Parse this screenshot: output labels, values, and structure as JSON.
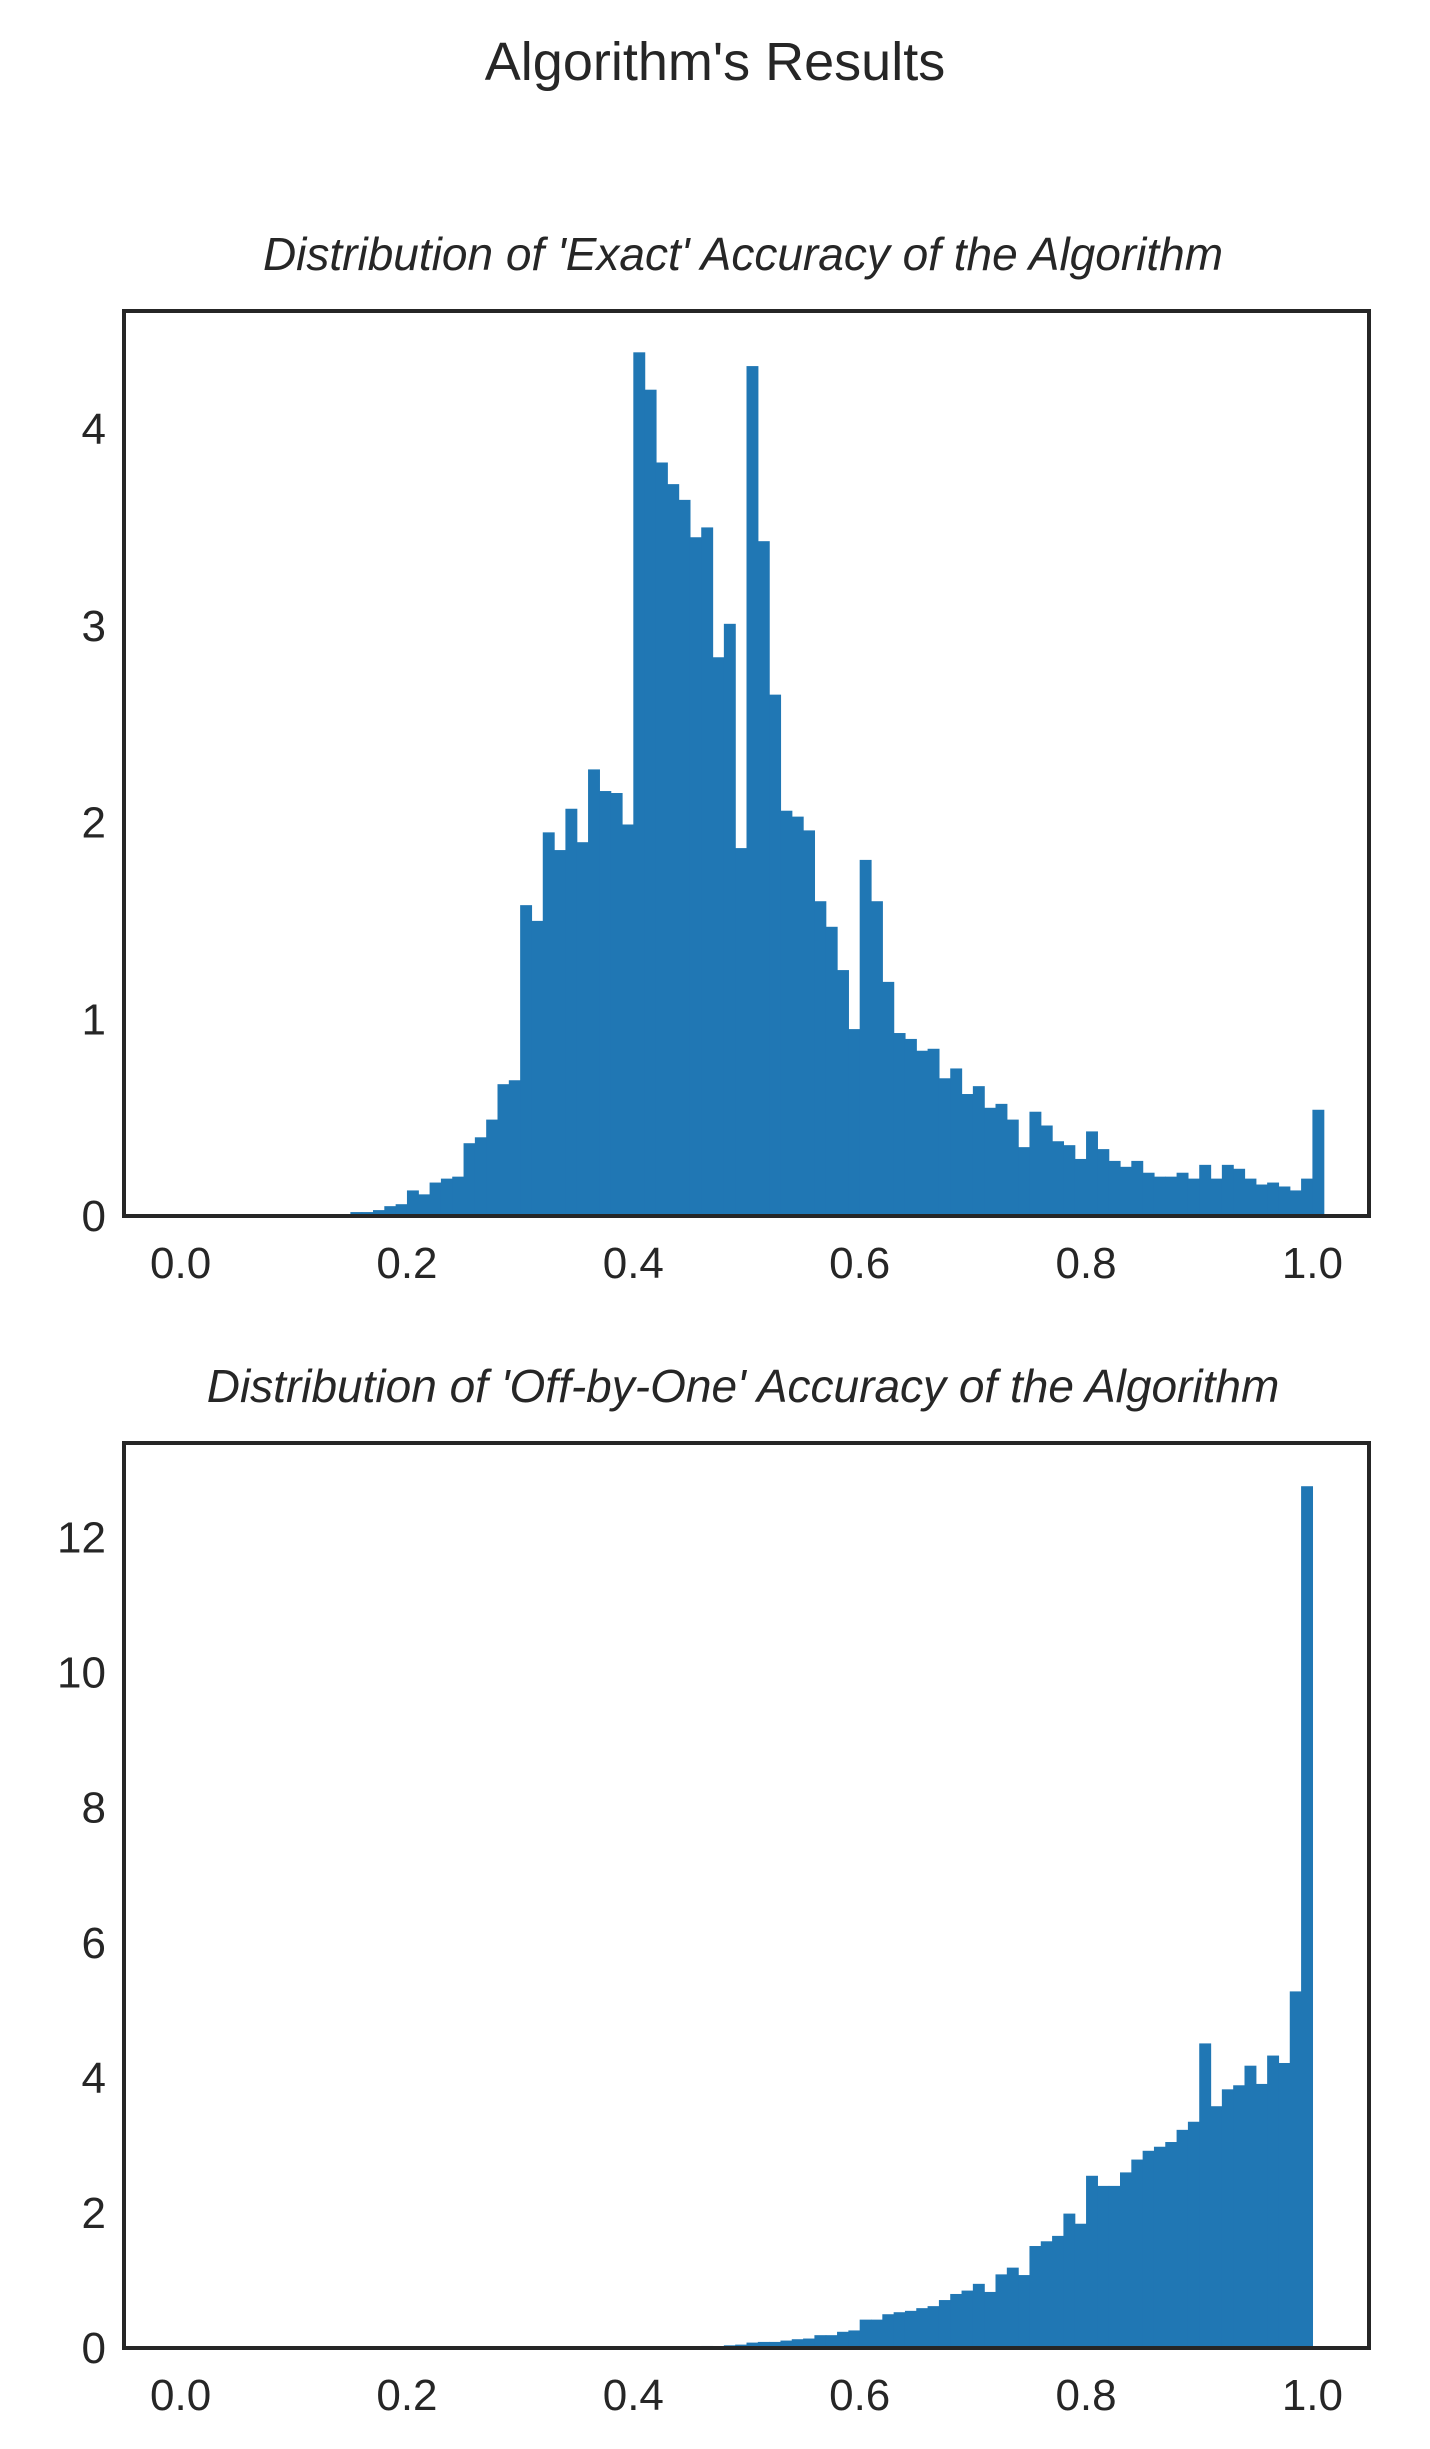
{
  "figure": {
    "suptitle": "Algorithm's Results"
  },
  "chart_data": [
    {
      "type": "bar",
      "subtype": "histogram",
      "title": "Distribution of 'Exact' Accuracy of the Algorithm",
      "xlabel": "",
      "ylabel": "",
      "xlim": [
        -0.05,
        1.05
      ],
      "ylim": [
        0,
        4.6
      ],
      "xticks": [
        0.0,
        0.2,
        0.4,
        0.6,
        0.8,
        1.0
      ],
      "xtick_labels": [
        "0.0",
        "0.2",
        "0.4",
        "0.6",
        "0.8",
        "1.0"
      ],
      "yticks": [
        0,
        1,
        2,
        3,
        4
      ],
      "ytick_labels": [
        "0",
        "1",
        "2",
        "3",
        "4"
      ],
      "grid": false,
      "color": "#2077b4",
      "bin_start": 0.0,
      "bin_width": 0.01,
      "values": [
        0,
        0,
        0,
        0,
        0,
        0,
        0,
        0,
        0,
        0,
        0,
        0,
        0,
        0.01,
        0.01,
        0.02,
        0.02,
        0.03,
        0.05,
        0.06,
        0.13,
        0.11,
        0.17,
        0.19,
        0.2,
        0.37,
        0.4,
        0.49,
        0.67,
        0.69,
        1.58,
        1.5,
        1.95,
        1.86,
        2.07,
        1.9,
        2.27,
        2.16,
        2.15,
        1.99,
        4.39,
        4.2,
        3.83,
        3.72,
        3.64,
        3.45,
        3.5,
        2.84,
        3.01,
        1.87,
        4.32,
        3.43,
        2.65,
        2.06,
        2.03,
        1.96,
        1.6,
        1.47,
        1.25,
        0.95,
        1.81,
        1.6,
        1.19,
        0.93,
        0.9,
        0.84,
        0.85,
        0.7,
        0.75,
        0.62,
        0.66,
        0.55,
        0.57,
        0.49,
        0.35,
        0.53,
        0.46,
        0.38,
        0.36,
        0.29,
        0.43,
        0.34,
        0.28,
        0.25,
        0.28,
        0.22,
        0.2,
        0.2,
        0.22,
        0.19,
        0.26,
        0.19,
        0.26,
        0.24,
        0.19,
        0.16,
        0.17,
        0.15,
        0.13,
        0.19,
        0.54
      ]
    },
    {
      "type": "bar",
      "subtype": "histogram",
      "title": "Distribution of 'Off-by-One' Accuracy of the Algorithm",
      "xlabel": "",
      "ylabel": "",
      "xlim": [
        -0.05,
        1.05
      ],
      "ylim": [
        0,
        13.4
      ],
      "xticks": [
        0.0,
        0.2,
        0.4,
        0.6,
        0.8,
        1.0
      ],
      "xtick_labels": [
        "0.0",
        "0.2",
        "0.4",
        "0.6",
        "0.8",
        "1.0"
      ],
      "yticks": [
        0,
        2,
        4,
        6,
        8,
        10,
        12
      ],
      "ytick_labels": [
        "0",
        "2",
        "4",
        "6",
        "8",
        "10",
        "12"
      ],
      "grid": false,
      "color": "#2077b4",
      "bin_start": 0.0,
      "bin_width": 0.01,
      "values": [
        0,
        0,
        0,
        0,
        0,
        0,
        0,
        0,
        0,
        0,
        0,
        0,
        0,
        0,
        0,
        0,
        0,
        0,
        0,
        0,
        0,
        0,
        0,
        0,
        0,
        0,
        0,
        0,
        0,
        0,
        0,
        0,
        0,
        0,
        0,
        0,
        0,
        0,
        0,
        0,
        0,
        0,
        0,
        0,
        0,
        0.02,
        0.03,
        0.02,
        0.04,
        0.05,
        0.08,
        0.09,
        0.09,
        0.11,
        0.13,
        0.14,
        0.19,
        0.19,
        0.24,
        0.26,
        0.42,
        0.42,
        0.5,
        0.53,
        0.55,
        0.59,
        0.62,
        0.71,
        0.8,
        0.85,
        0.95,
        0.83,
        1.09,
        1.19,
        1.08,
        1.51,
        1.58,
        1.66,
        1.99,
        1.84,
        2.55,
        2.4,
        2.4,
        2.6,
        2.79,
        2.92,
        2.98,
        3.05,
        3.23,
        3.35,
        4.51,
        3.58,
        3.83,
        3.89,
        4.18,
        3.91,
        4.33,
        4.22,
        5.28,
        12.76,
        0
      ]
    }
  ]
}
